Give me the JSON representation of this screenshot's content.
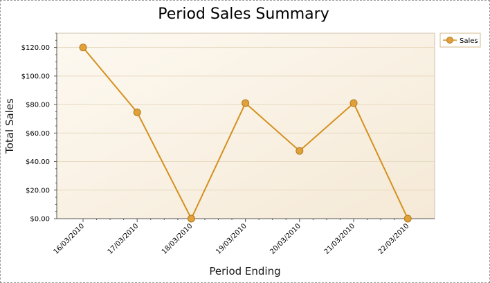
{
  "chart_data": {
    "type": "line",
    "title": "Period Sales Summary",
    "xlabel": "Period Ending",
    "ylabel": "Total Sales",
    "categories": [
      "16/03/2010",
      "17/03/2010",
      "18/03/2010",
      "19/03/2010",
      "20/03/2010",
      "21/03/2010",
      "22/03/2010"
    ],
    "series": [
      {
        "name": "Sales",
        "values": [
          120,
          74.5,
          0,
          81,
          47.5,
          81,
          0
        ],
        "color": "#d4901e",
        "marker_fill": "#e0a03a"
      }
    ],
    "ylim": [
      0,
      130
    ],
    "yticks": [
      0,
      20,
      40,
      60,
      80,
      100,
      120
    ],
    "ytick_labels": [
      "$0.00",
      "$20.00",
      "$40.00",
      "$60.00",
      "$80.00",
      "$100.00",
      "$120.00"
    ],
    "grid": true,
    "legend": "top-right",
    "colors": {
      "plot_bg_light": "#fdf9f1",
      "plot_bg_dark": "#f5e9d6",
      "gridline": "#e8d9c0",
      "axis": "#555555",
      "legend_border": "#d6b98a"
    }
  }
}
